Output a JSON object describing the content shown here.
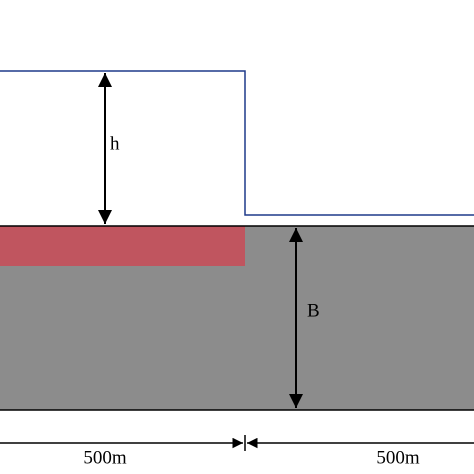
{
  "labels": {
    "height": "h",
    "depth": "B",
    "left_width": "500m",
    "right_width": "500m"
  }
}
